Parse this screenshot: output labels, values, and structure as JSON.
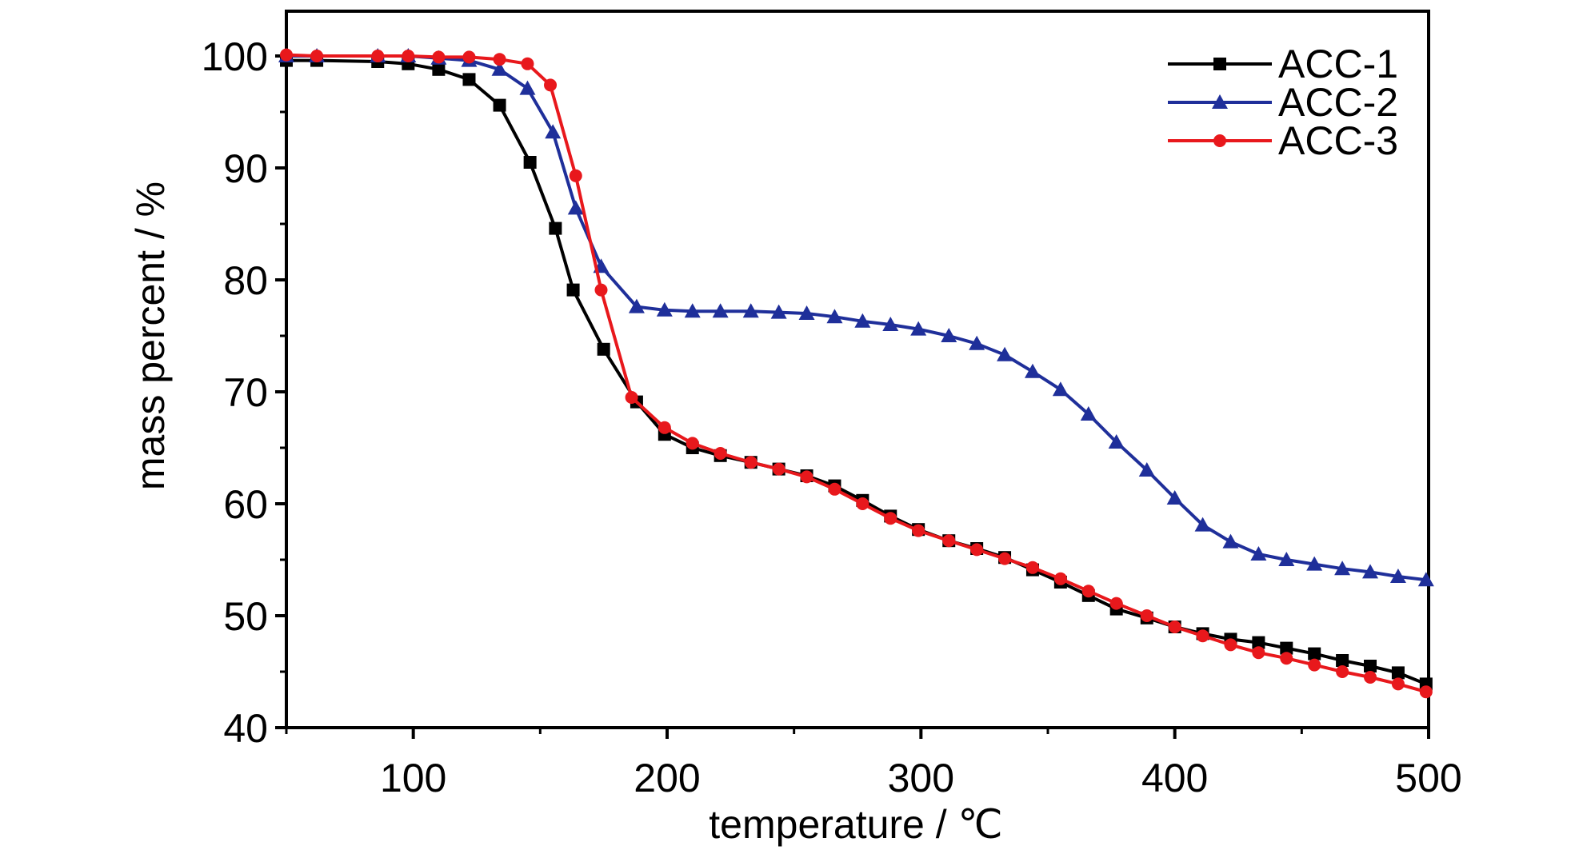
{
  "chart_data": {
    "type": "line",
    "xlabel": "temperature / ℃",
    "ylabel": "mass percent / %",
    "xlim": [
      50,
      500
    ],
    "ylim": [
      40,
      104
    ],
    "xticks": [
      100,
      200,
      300,
      400,
      500
    ],
    "yticks": [
      40,
      50,
      60,
      70,
      80,
      90,
      100
    ],
    "grid": false,
    "legend_position": "top-right",
    "series": [
      {
        "name": "ACC-1",
        "color": "#000000",
        "marker": "square",
        "x": [
          50,
          62,
          86,
          98,
          110,
          122,
          134,
          146,
          156,
          163,
          175,
          188,
          199,
          210,
          221,
          233,
          244,
          255,
          266,
          277,
          288,
          299,
          311,
          322,
          333,
          344,
          355,
          366,
          377,
          389,
          400,
          411,
          422,
          433,
          444,
          455,
          466,
          477,
          488,
          499
        ],
        "y": [
          99.6,
          99.6,
          99.5,
          99.3,
          98.8,
          97.9,
          95.6,
          90.5,
          84.6,
          79.1,
          73.8,
          69.1,
          66.2,
          65.0,
          64.3,
          63.7,
          63.1,
          62.5,
          61.6,
          60.3,
          58.9,
          57.7,
          56.7,
          56.0,
          55.2,
          54.1,
          53.0,
          51.8,
          50.6,
          49.8,
          49.0,
          48.4,
          47.9,
          47.6,
          47.1,
          46.6,
          46.0,
          45.5,
          44.9,
          43.9
        ]
      },
      {
        "name": "ACC-2",
        "color": "#1f2f9a",
        "marker": "triangle",
        "x": [
          50,
          62,
          86,
          98,
          110,
          122,
          134,
          145,
          155,
          164,
          174,
          188,
          199,
          210,
          221,
          233,
          244,
          255,
          266,
          277,
          288,
          299,
          311,
          322,
          333,
          344,
          355,
          366,
          377,
          389,
          400,
          411,
          422,
          433,
          444,
          455,
          466,
          477,
          488,
          499
        ],
        "y": [
          100.0,
          100.0,
          100.0,
          100.0,
          99.8,
          99.6,
          98.8,
          97.1,
          93.2,
          86.4,
          81.2,
          77.6,
          77.3,
          77.2,
          77.2,
          77.2,
          77.1,
          77.0,
          76.7,
          76.3,
          76.0,
          75.6,
          75.0,
          74.3,
          73.3,
          71.8,
          70.2,
          68.0,
          65.5,
          63.0,
          60.5,
          58.1,
          56.6,
          55.5,
          55.0,
          54.6,
          54.2,
          53.9,
          53.5,
          53.2
        ]
      },
      {
        "name": "ACC-3",
        "color": "#e8181c",
        "marker": "circle",
        "x": [
          50,
          62,
          86,
          98,
          110,
          122,
          134,
          145,
          154,
          164,
          174,
          186,
          199,
          210,
          221,
          233,
          244,
          255,
          266,
          277,
          288,
          299,
          311,
          322,
          333,
          344,
          355,
          366,
          377,
          389,
          400,
          411,
          422,
          433,
          444,
          455,
          466,
          477,
          488,
          499
        ],
        "y": [
          100.1,
          100.0,
          100.0,
          100.0,
          99.9,
          99.9,
          99.7,
          99.3,
          97.4,
          89.3,
          79.1,
          69.5,
          66.8,
          65.4,
          64.5,
          63.7,
          63.1,
          62.4,
          61.3,
          60.0,
          58.7,
          57.6,
          56.7,
          55.9,
          55.1,
          54.3,
          53.3,
          52.2,
          51.1,
          50.0,
          49.0,
          48.2,
          47.4,
          46.7,
          46.2,
          45.6,
          45.0,
          44.5,
          43.9,
          43.2
        ]
      }
    ]
  }
}
